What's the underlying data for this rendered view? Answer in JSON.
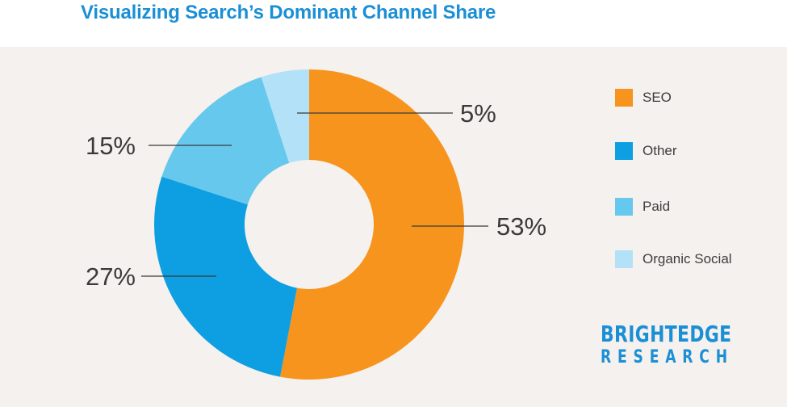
{
  "title": "Visualizing Search’s Dominant Channel Share",
  "chart_data": {
    "type": "pie",
    "variant": "donut",
    "title": "Visualizing Search’s Dominant Channel Share",
    "categories": [
      "SEO",
      "Other",
      "Paid",
      "Organic Social"
    ],
    "values": [
      53,
      27,
      15,
      5
    ],
    "value_labels": [
      "53%",
      "27%",
      "15%",
      "5%"
    ],
    "colors": [
      "#f7941d",
      "#0e9fe2",
      "#67c8ee",
      "#b3e2f8"
    ],
    "legend_position": "right",
    "unit": "%"
  },
  "legend": {
    "items": [
      {
        "label": "SEO",
        "color": "#f7941d"
      },
      {
        "label": "Other",
        "color": "#0e9fe2"
      },
      {
        "label": "Paid",
        "color": "#67c8ee"
      },
      {
        "label": "Organic Social",
        "color": "#b3e2f8"
      }
    ]
  },
  "logo": {
    "line1": "BRIGHTEDGE",
    "line2": "RESEARCH"
  }
}
